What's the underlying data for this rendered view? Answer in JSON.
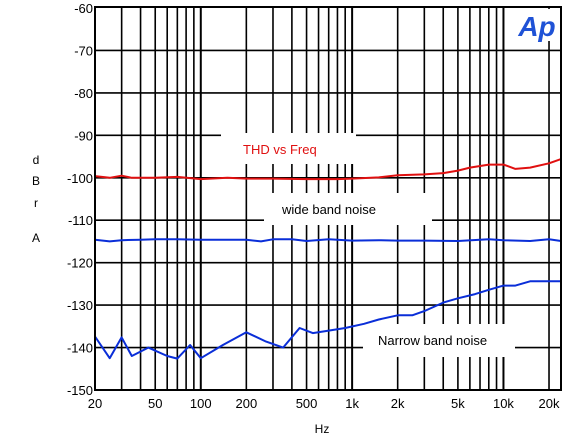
{
  "chart_data": {
    "type": "line",
    "xscale": "log",
    "xlim": [
      20,
      24000
    ],
    "ylim": [
      -150,
      -60
    ],
    "xlabel": "Hz",
    "ylabel_lines": [
      "d",
      "B",
      "r",
      "A"
    ],
    "yticks": [
      -60,
      -70,
      -80,
      -90,
      -100,
      -110,
      -120,
      -130,
      -140,
      -150
    ],
    "xticks": [
      {
        "value": 20,
        "label": "20"
      },
      {
        "value": 50,
        "label": "50"
      },
      {
        "value": 100,
        "label": "100"
      },
      {
        "value": 200,
        "label": "200"
      },
      {
        "value": 500,
        "label": "500"
      },
      {
        "value": 1000,
        "label": "1k"
      },
      {
        "value": 2000,
        "label": "2k"
      },
      {
        "value": 5000,
        "label": "5k"
      },
      {
        "value": 10000,
        "label": "10k"
      },
      {
        "value": 20000,
        "label": "20k"
      }
    ],
    "grid": true,
    "series": [
      {
        "annotation": "THD vs Freq",
        "color": "#e01010",
        "points": [
          [
            20,
            -99.6
          ],
          [
            25,
            -100
          ],
          [
            30,
            -99.5
          ],
          [
            35,
            -100
          ],
          [
            50,
            -100
          ],
          [
            70,
            -99.8
          ],
          [
            100,
            -100.3
          ],
          [
            150,
            -100
          ],
          [
            200,
            -100.2
          ],
          [
            300,
            -100.2
          ],
          [
            500,
            -100.3
          ],
          [
            800,
            -100.3
          ],
          [
            1000,
            -100.2
          ],
          [
            1500,
            -99.9
          ],
          [
            2000,
            -99.4
          ],
          [
            3000,
            -99.2
          ],
          [
            4000,
            -98.9
          ],
          [
            5000,
            -98.3
          ],
          [
            6000,
            -97.6
          ],
          [
            8000,
            -96.9
          ],
          [
            10000,
            -96.9
          ],
          [
            12000,
            -97.9
          ],
          [
            15000,
            -97.6
          ],
          [
            20000,
            -96.6
          ],
          [
            24000,
            -95.6
          ]
        ]
      },
      {
        "annotation": "wide band noise",
        "color": "#0a2ed8",
        "points": [
          [
            20,
            -114.6
          ],
          [
            25,
            -115
          ],
          [
            30,
            -114.7
          ],
          [
            40,
            -114.6
          ],
          [
            50,
            -114.5
          ],
          [
            70,
            -114.5
          ],
          [
            100,
            -114.6
          ],
          [
            150,
            -114.6
          ],
          [
            200,
            -114.6
          ],
          [
            250,
            -115
          ],
          [
            300,
            -114.5
          ],
          [
            400,
            -114.5
          ],
          [
            500,
            -114.9
          ],
          [
            700,
            -114.5
          ],
          [
            1000,
            -114.8
          ],
          [
            1500,
            -114.7
          ],
          [
            2000,
            -114.8
          ],
          [
            3000,
            -114.8
          ],
          [
            5000,
            -114.9
          ],
          [
            7000,
            -114.6
          ],
          [
            8000,
            -114.5
          ],
          [
            10000,
            -114.7
          ],
          [
            15000,
            -114.9
          ],
          [
            20000,
            -114.5
          ],
          [
            24000,
            -114.9
          ]
        ]
      },
      {
        "annotation": "Narrow band noise",
        "color": "#0a2ed8",
        "points": [
          [
            20,
            -137.4
          ],
          [
            25,
            -142.5
          ],
          [
            30,
            -137.6
          ],
          [
            35,
            -142
          ],
          [
            45,
            -140
          ],
          [
            60,
            -142
          ],
          [
            70,
            -142.6
          ],
          [
            85,
            -139.4
          ],
          [
            100,
            -142.5
          ],
          [
            140,
            -139.4
          ],
          [
            200,
            -136.4
          ],
          [
            270,
            -138.6
          ],
          [
            350,
            -140
          ],
          [
            450,
            -135.4
          ],
          [
            550,
            -136.6
          ],
          [
            700,
            -136
          ],
          [
            900,
            -135.4
          ],
          [
            1200,
            -134.4
          ],
          [
            1500,
            -133.4
          ],
          [
            2000,
            -132.4
          ],
          [
            2500,
            -132.4
          ],
          [
            3000,
            -131.4
          ],
          [
            4000,
            -129.4
          ],
          [
            5000,
            -128.4
          ],
          [
            6500,
            -127.4
          ],
          [
            8000,
            -126.4
          ],
          [
            10000,
            -125.4
          ],
          [
            12000,
            -125.4
          ],
          [
            15000,
            -124.4
          ],
          [
            24000,
            -124.4
          ]
        ]
      }
    ]
  },
  "brand": {
    "logo_text": "Ap",
    "color": "#1f52d6"
  }
}
